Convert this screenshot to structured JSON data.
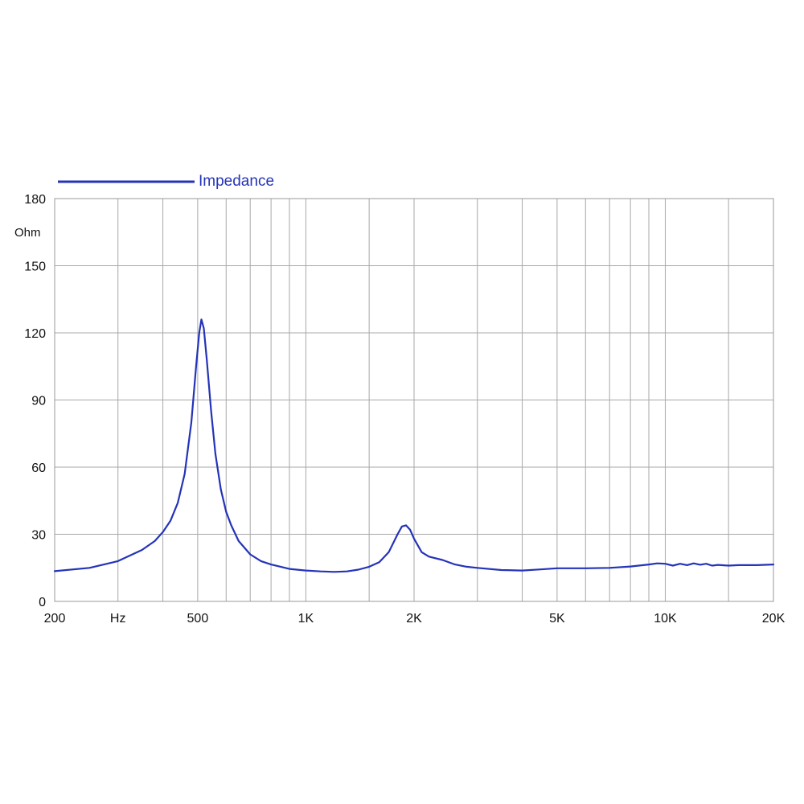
{
  "chart_data": {
    "type": "line",
    "x_scale": "log",
    "xlim": [
      200,
      20000
    ],
    "ylim": [
      0,
      180
    ],
    "grid": true,
    "legend_placement": "top-left",
    "ylabel": "Ohm",
    "x_ticks": [
      {
        "value": 200,
        "label": "200"
      },
      {
        "value": 300,
        "label": "Hz"
      },
      {
        "value": 500,
        "label": "500"
      },
      {
        "value": 1000,
        "label": "1K"
      },
      {
        "value": 2000,
        "label": "2K"
      },
      {
        "value": 5000,
        "label": "5K"
      },
      {
        "value": 10000,
        "label": "10K"
      },
      {
        "value": 20000,
        "label": "20K"
      }
    ],
    "x_gridlines": [
      200,
      300,
      400,
      500,
      600,
      700,
      800,
      900,
      1000,
      1500,
      2000,
      3000,
      4000,
      5000,
      6000,
      7000,
      8000,
      9000,
      10000,
      15000,
      20000
    ],
    "y_ticks": [
      {
        "value": 0,
        "label": "0"
      },
      {
        "value": 30,
        "label": "30"
      },
      {
        "value": 60,
        "label": "60"
      },
      {
        "value": 90,
        "label": "90"
      },
      {
        "value": 120,
        "label": "120"
      },
      {
        "value": 150,
        "label": "150"
      },
      {
        "value": 180,
        "label": "180"
      }
    ],
    "series": [
      {
        "name": "Impedance",
        "color": "#2433b8",
        "points": [
          [
            200,
            13.5
          ],
          [
            250,
            15
          ],
          [
            300,
            18
          ],
          [
            350,
            23
          ],
          [
            380,
            27
          ],
          [
            400,
            31
          ],
          [
            420,
            36
          ],
          [
            440,
            44
          ],
          [
            460,
            57
          ],
          [
            480,
            80
          ],
          [
            495,
            105
          ],
          [
            505,
            120
          ],
          [
            512,
            126
          ],
          [
            520,
            122
          ],
          [
            530,
            108
          ],
          [
            545,
            85
          ],
          [
            560,
            66
          ],
          [
            580,
            50
          ],
          [
            600,
            40
          ],
          [
            620,
            34
          ],
          [
            650,
            27
          ],
          [
            700,
            21
          ],
          [
            750,
            18
          ],
          [
            800,
            16.5
          ],
          [
            900,
            14.5
          ],
          [
            1000,
            13.8
          ],
          [
            1100,
            13.4
          ],
          [
            1200,
            13.2
          ],
          [
            1300,
            13.4
          ],
          [
            1400,
            14.2
          ],
          [
            1500,
            15.5
          ],
          [
            1600,
            17.5
          ],
          [
            1700,
            22
          ],
          [
            1800,
            30
          ],
          [
            1850,
            33.5
          ],
          [
            1900,
            34
          ],
          [
            1950,
            32
          ],
          [
            2000,
            28
          ],
          [
            2100,
            22
          ],
          [
            2200,
            20
          ],
          [
            2400,
            18.5
          ],
          [
            2600,
            16.5
          ],
          [
            2800,
            15.5
          ],
          [
            3000,
            15
          ],
          [
            3500,
            14
          ],
          [
            4000,
            13.8
          ],
          [
            4500,
            14.3
          ],
          [
            5000,
            14.8
          ],
          [
            6000,
            14.8
          ],
          [
            7000,
            15
          ],
          [
            8000,
            15.6
          ],
          [
            9000,
            16.5
          ],
          [
            9500,
            17
          ],
          [
            10000,
            16.8
          ],
          [
            10500,
            16
          ],
          [
            11000,
            16.8
          ],
          [
            11500,
            16.2
          ],
          [
            12000,
            17
          ],
          [
            12500,
            16.4
          ],
          [
            13000,
            16.8
          ],
          [
            13500,
            16
          ],
          [
            14000,
            16.3
          ],
          [
            15000,
            16
          ],
          [
            16000,
            16.2
          ],
          [
            18000,
            16.2
          ],
          [
            20000,
            16.5
          ]
        ]
      }
    ]
  }
}
